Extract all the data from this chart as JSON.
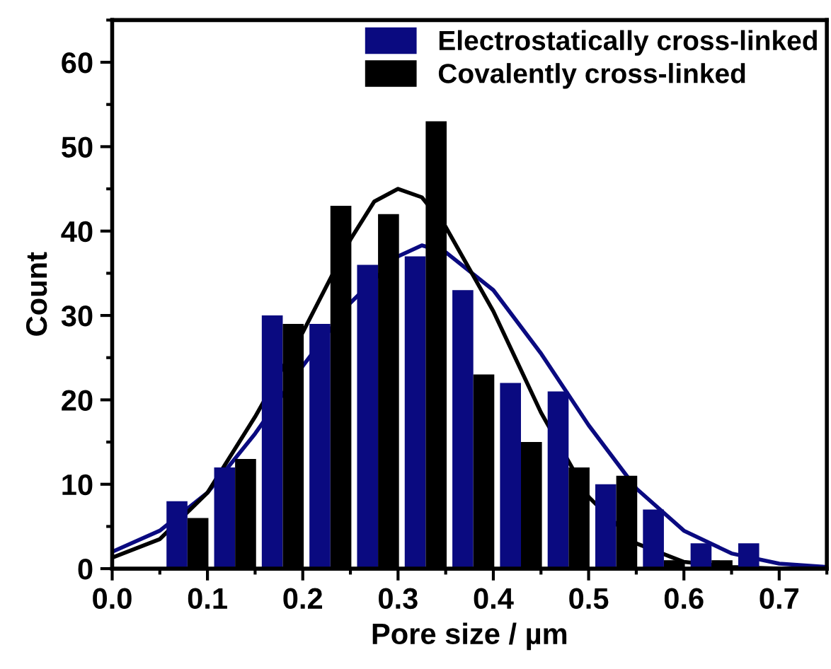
{
  "chart_data": {
    "type": "bar",
    "xlabel": "Pore size / µm",
    "ylabel": "Count",
    "xlim": [
      0,
      0.75
    ],
    "ylim": [
      0,
      65
    ],
    "xticks": [
      {
        "value": 0,
        "label": "0.0"
      },
      0.1,
      0.2,
      0.3,
      0.4,
      0.5,
      0.6,
      0.7
    ],
    "yticks": [
      0,
      10,
      20,
      30,
      40,
      50,
      60
    ],
    "legend": "top right",
    "grid": false,
    "series": [
      {
        "name": "Electrostatically cross-linked",
        "color": "#0a0a80",
        "x": [
          0.068,
          0.118,
          0.168,
          0.218,
          0.268,
          0.318,
          0.368,
          0.418,
          0.468,
          0.518,
          0.568,
          0.618,
          0.668
        ],
        "values": [
          8,
          12,
          30,
          29,
          36,
          37,
          33,
          22,
          21,
          10,
          7,
          3,
          3
        ]
      },
      {
        "name": "Covalently cross-linked",
        "color": "#000000",
        "x": [
          0.09,
          0.14,
          0.19,
          0.24,
          0.29,
          0.34,
          0.39,
          0.44,
          0.49,
          0.54,
          0.59,
          0.64
        ],
        "values": [
          6,
          13,
          29,
          43,
          42,
          53,
          23,
          15,
          12,
          11,
          1,
          1
        ]
      },
      {
        "type": "line",
        "color": "#0a0a80",
        "x": [
          0,
          0.05,
          0.1,
          0.15,
          0.2,
          0.25,
          0.3,
          0.325,
          0.35,
          0.4,
          0.45,
          0.5,
          0.55,
          0.6,
          0.65,
          0.7,
          0.75
        ],
        "values": [
          2,
          4.5,
          9,
          16,
          24,
          31.5,
          37,
          38.3,
          37.5,
          33,
          25.5,
          17,
          9.5,
          4.5,
          1.8,
          0.6,
          0.2
        ]
      },
      {
        "type": "line",
        "color": "#000000",
        "x": [
          0,
          0.05,
          0.1,
          0.15,
          0.2,
          0.25,
          0.275,
          0.3,
          0.325,
          0.35,
          0.4,
          0.45,
          0.5,
          0.55,
          0.6,
          0.65,
          0.7,
          0.75
        ],
        "values": [
          1.3,
          3.5,
          9,
          18,
          28,
          39,
          43.5,
          45,
          44,
          40.5,
          30.5,
          18.5,
          8.5,
          3,
          0.8,
          0.2,
          0,
          0
        ]
      }
    ]
  }
}
